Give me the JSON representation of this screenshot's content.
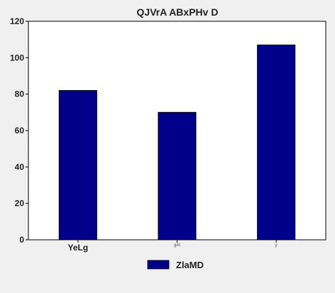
{
  "chart_data": {
    "type": "bar",
    "title": "QJVrA ABxPHv D",
    "categories": [
      "YeLg",
      "gAl",
      "y"
    ],
    "series": [
      {
        "name": "ZlaMD",
        "values": [
          82,
          70,
          107
        ],
        "color": "#00008b"
      }
    ],
    "ylim": [
      0,
      120
    ],
    "yticks": [
      0,
      20,
      40,
      60,
      80,
      100,
      120
    ],
    "grid": false,
    "legend": "bottom-center"
  }
}
